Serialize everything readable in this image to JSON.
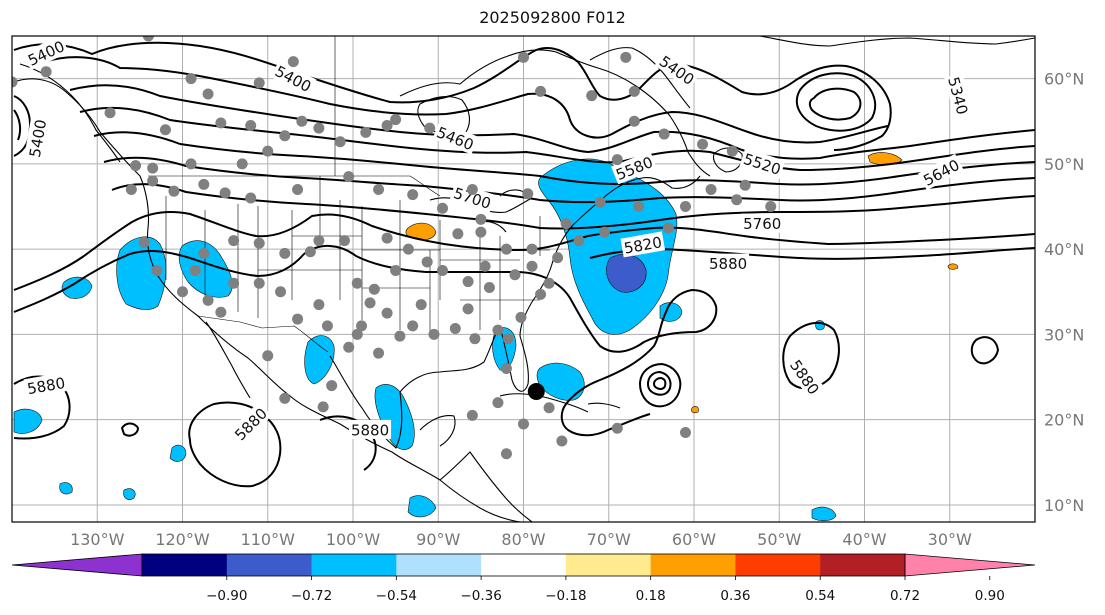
{
  "title": "2025092800 F012",
  "map": {
    "lon_range": [
      -140,
      -20
    ],
    "lat_range": [
      8,
      65
    ],
    "lon_ticks": [
      {
        "value": -130,
        "label": "130°W"
      },
      {
        "value": -120,
        "label": "120°W"
      },
      {
        "value": -110,
        "label": "110°W"
      },
      {
        "value": -100,
        "label": "100°W"
      },
      {
        "value": -90,
        "label": "90°W"
      },
      {
        "value": -80,
        "label": "80°W"
      },
      {
        "value": -70,
        "label": "70°W"
      },
      {
        "value": -60,
        "label": "60°W"
      },
      {
        "value": -50,
        "label": "50°W"
      },
      {
        "value": -40,
        "label": "40°W"
      },
      {
        "value": -30,
        "label": "30°W"
      }
    ],
    "lat_ticks": [
      {
        "value": 60,
        "label": "60°N"
      },
      {
        "value": 50,
        "label": "50°N"
      },
      {
        "value": 40,
        "label": "40°N"
      },
      {
        "value": 30,
        "label": "30°N"
      },
      {
        "value": 20,
        "label": "20°N"
      },
      {
        "value": 10,
        "label": "10°N"
      }
    ],
    "contour_labels": [
      {
        "text": "5400",
        "lon": -136,
        "lat": 63,
        "angle": -25
      },
      {
        "text": "5400",
        "lon": -137,
        "lat": 53,
        "angle": -80
      },
      {
        "text": "5400",
        "lon": -107,
        "lat": 60,
        "angle": 28
      },
      {
        "text": "5400",
        "lon": -62,
        "lat": 61,
        "angle": 35
      },
      {
        "text": "5340",
        "lon": -29,
        "lat": 58,
        "angle": 75
      },
      {
        "text": "5460",
        "lon": -88,
        "lat": 53,
        "angle": 22
      },
      {
        "text": "5700",
        "lon": -86,
        "lat": 46,
        "angle": 18
      },
      {
        "text": "5580",
        "lon": -67,
        "lat": 49.5,
        "angle": -22
      },
      {
        "text": "5520",
        "lon": -52,
        "lat": 50,
        "angle": 18
      },
      {
        "text": "5640",
        "lon": -31,
        "lat": 49,
        "angle": -28
      },
      {
        "text": "5760",
        "lon": -52,
        "lat": 43,
        "angle": 0
      },
      {
        "text": "5820",
        "lon": -66,
        "lat": 40.5,
        "angle": -10
      },
      {
        "text": "5880",
        "lon": -56,
        "lat": 38.3,
        "angle": 0
      },
      {
        "text": "5880",
        "lon": -47,
        "lat": 25,
        "angle": 55
      },
      {
        "text": "5880",
        "lon": -136,
        "lat": 24,
        "angle": -10
      },
      {
        "text": "5880",
        "lon": -112,
        "lat": 19.5,
        "angle": -45
      },
      {
        "text": "5880",
        "lon": -98,
        "lat": 18.8,
        "angle": 0
      }
    ],
    "stations": [
      [
        -140,
        59.6
      ],
      [
        -136,
        60.8
      ],
      [
        -124,
        65
      ],
      [
        -119,
        60
      ],
      [
        -107,
        62
      ],
      [
        -111,
        59.5
      ],
      [
        -117,
        58.2
      ],
      [
        -128.5,
        56
      ],
      [
        -122,
        54
      ],
      [
        -115.5,
        54.8
      ],
      [
        -112,
        54.5
      ],
      [
        -106,
        55
      ],
      [
        -104,
        54.2
      ],
      [
        -96,
        54.5
      ],
      [
        -91,
        54.2
      ],
      [
        -95,
        55.2
      ],
      [
        -98.5,
        53.7
      ],
      [
        -101.5,
        52.6
      ],
      [
        -108,
        53.3
      ],
      [
        -110,
        51.5
      ],
      [
        -113,
        50
      ],
      [
        -119,
        50
      ],
      [
        -123.5,
        49.5
      ],
      [
        -125.5,
        49.8
      ],
      [
        -123.5,
        48
      ],
      [
        -126,
        47
      ],
      [
        -121,
        46.8
      ],
      [
        -115,
        46.6
      ],
      [
        -117.5,
        47.6
      ],
      [
        -112,
        46
      ],
      [
        -106.5,
        47
      ],
      [
        -100.5,
        48.5
      ],
      [
        -97,
        47
      ],
      [
        -93,
        46.4
      ],
      [
        -89.5,
        44.8
      ],
      [
        -85,
        43.5
      ],
      [
        -86,
        47
      ],
      [
        -79.5,
        46.5
      ],
      [
        -75,
        43
      ],
      [
        -71,
        45.5
      ],
      [
        -66.5,
        45
      ],
      [
        -61,
        45
      ],
      [
        -58,
        47
      ],
      [
        -54,
        47.5
      ],
      [
        -67,
        55
      ],
      [
        -69,
        50.5
      ],
      [
        -63.5,
        53.5
      ],
      [
        -80,
        62.5
      ],
      [
        -78,
        58.5
      ],
      [
        -72,
        58
      ],
      [
        -68,
        62.5
      ],
      [
        -67,
        58.5
      ],
      [
        -59,
        52.3
      ],
      [
        -55.5,
        51.5
      ],
      [
        -51,
        45
      ],
      [
        -55,
        45.8
      ],
      [
        -63,
        42.5
      ],
      [
        -70.5,
        42
      ],
      [
        -73.5,
        41
      ],
      [
        -76,
        39
      ],
      [
        -77,
        36
      ],
      [
        -78,
        34.7
      ],
      [
        -80.3,
        32
      ],
      [
        -81.8,
        29.5
      ],
      [
        -82,
        26
      ],
      [
        -83,
        30.5
      ],
      [
        -85.7,
        29.5
      ],
      [
        -86.5,
        33
      ],
      [
        -88,
        30.7
      ],
      [
        -90.5,
        30
      ],
      [
        -92,
        33.5
      ],
      [
        -93,
        31
      ],
      [
        -94.5,
        29.8
      ],
      [
        -96,
        32.5
      ],
      [
        -99,
        31
      ],
      [
        -97,
        27.8
      ],
      [
        -100.5,
        28.5
      ],
      [
        -103,
        31
      ],
      [
        -106.5,
        31.8
      ],
      [
        -108.5,
        35
      ],
      [
        -111,
        36
      ],
      [
        -114,
        36
      ],
      [
        -117,
        34
      ],
      [
        -120,
        35
      ],
      [
        -124.5,
        40.8
      ],
      [
        -123,
        37.5
      ],
      [
        -118.5,
        37.5
      ],
      [
        -117.5,
        39.5
      ],
      [
        -114,
        41
      ],
      [
        -111,
        40.7
      ],
      [
        -108,
        39.5
      ],
      [
        -105,
        39.7
      ],
      [
        -104,
        41
      ],
      [
        -101,
        41
      ],
      [
        -99.5,
        36
      ],
      [
        -97.5,
        35.3
      ],
      [
        -95,
        37.5
      ],
      [
        -93.5,
        40
      ],
      [
        -91.3,
        38.5
      ],
      [
        -89.5,
        37.5
      ],
      [
        -86.5,
        36.2
      ],
      [
        -84,
        35.5
      ],
      [
        -84.5,
        38
      ],
      [
        -81,
        37
      ],
      [
        -79,
        38
      ],
      [
        -79,
        40
      ],
      [
        -82,
        40
      ],
      [
        -85,
        42
      ],
      [
        -87.7,
        41.8
      ],
      [
        -96,
        41.3
      ],
      [
        -104,
        33.5
      ],
      [
        -99.5,
        30
      ],
      [
        -98,
        33.7
      ],
      [
        -102.5,
        24
      ],
      [
        -103.5,
        21.5
      ],
      [
        -108,
        22.5
      ],
      [
        -110,
        27.5
      ],
      [
        -115.5,
        32.6
      ],
      [
        -83,
        22
      ],
      [
        -77,
        21.4
      ],
      [
        -75.5,
        17.5
      ],
      [
        -80,
        19.5
      ],
      [
        -82,
        16
      ],
      [
        -86,
        20.5
      ],
      [
        -69,
        19
      ],
      [
        -61,
        18.5
      ]
    ],
    "cyclone_center": {
      "lon": -78.5,
      "lat": 23.3
    }
  },
  "colorbar": {
    "colors": [
      "#8e31d1",
      "#000080",
      "#3c5ccc",
      "#00bfff",
      "#afe1fe",
      "#ffffff",
      "#ffea8d",
      "#ff9f00",
      "#ff3d00",
      "#b21f24",
      "#ff82aa"
    ],
    "tick_labels": [
      "−0.90",
      "−0.72",
      "−0.54",
      "−0.36",
      "−0.18",
      "0.18",
      "0.36",
      "0.54",
      "0.72",
      "0.90"
    ]
  }
}
